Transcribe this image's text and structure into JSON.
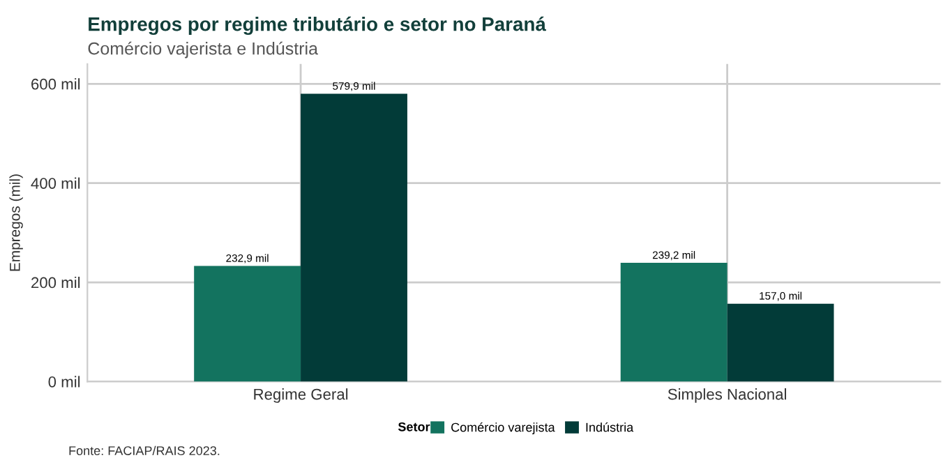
{
  "chart_data": {
    "type": "bar",
    "title": "Empregos por regime tributário e setor no Paraná",
    "subtitle": "Comércio vajerista e Indústria",
    "ylabel": "Empregos (mil)",
    "legend_title": "Setor",
    "categories": [
      "Regime Geral",
      "Simples Nacional"
    ],
    "series": [
      {
        "name": "Comércio varejista",
        "color": "#13735f",
        "values": [
          232.9,
          239.2
        ],
        "value_labels": [
          "232,9 mil",
          "239,2 mil"
        ]
      },
      {
        "name": "Indústria",
        "color": "#023b38",
        "values": [
          579.9,
          157.0
        ],
        "value_labels": [
          "579,9 mil",
          "157,0 mil"
        ]
      }
    ],
    "ylim": [
      0,
      640
    ],
    "yticks": [
      {
        "value": 0,
        "label": "0 mil"
      },
      {
        "value": 200,
        "label": "200 mil"
      },
      {
        "value": 400,
        "label": "400 mil"
      },
      {
        "value": 600,
        "label": "600 mil"
      }
    ],
    "grid": true,
    "legend": "bottom",
    "annotations": [
      "Fonte: FACIAP/RAIS 2023."
    ]
  }
}
